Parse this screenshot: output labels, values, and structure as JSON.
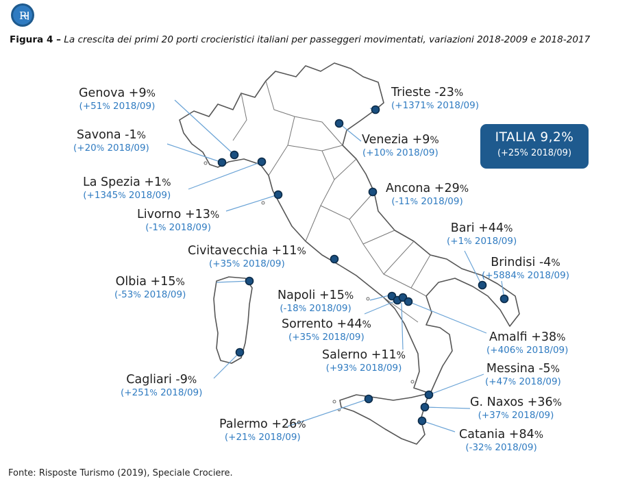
{
  "figure": {
    "label": "Figura 4 –",
    "caption": "La crescita dei primi 20 porti crocieristici italiani per passeggeri movimentati, variazioni 2018-2009 e 2018-2017"
  },
  "logo": {
    "icon": "logo-icon",
    "text": "R"
  },
  "total": {
    "title": "ITALIA 9,2%",
    "sub": "(+25% 2018/09)"
  },
  "colors": {
    "accent": "#2f7bc1",
    "box": "#1e5a8e",
    "marker": "#1a4f80",
    "line": "#6aa3d6"
  },
  "ports": [
    {
      "id": "trieste",
      "name": "Trieste",
      "var": "-23",
      "sub": "(+1371",
      "year": "2018/09)"
    },
    {
      "id": "genova",
      "name": "Genova",
      "var": "+9",
      "sub": "(+51",
      "year": "2018/09)"
    },
    {
      "id": "venezia",
      "name": "Venezia",
      "var": "+9",
      "sub": "(+10",
      "year": "2018/09)"
    },
    {
      "id": "savona",
      "name": "Savona",
      "var": "-1",
      "sub": "(+20",
      "year": "2018/09)"
    },
    {
      "id": "laspezia",
      "name": "La Spezia",
      "var": "+1",
      "sub": "(+1345",
      "year": "2018/09)"
    },
    {
      "id": "ancona",
      "name": "Ancona",
      "var": "+29",
      "sub": "(-11",
      "year": "2018/09)"
    },
    {
      "id": "livorno",
      "name": "Livorno",
      "var": "+13",
      "sub": "(-1",
      "year": "2018/09)"
    },
    {
      "id": "bari",
      "name": "Bari",
      "var": "+44",
      "sub": "(+1",
      "year": "2018/09)"
    },
    {
      "id": "civitavecchia",
      "name": "Civitavecchia",
      "var": "+11",
      "sub": "(+35",
      "year": "2018/09)"
    },
    {
      "id": "brindisi",
      "name": "Brindisi",
      "var": "-4",
      "sub": "(+5884",
      "year": "2018/09)"
    },
    {
      "id": "olbia",
      "name": "Olbia",
      "var": "+15",
      "sub": "(-53",
      "year": "2018/09)"
    },
    {
      "id": "napoli",
      "name": "Napoli",
      "var": "+15",
      "sub": "(-18",
      "year": "2018/09)"
    },
    {
      "id": "sorrento",
      "name": "Sorrento",
      "var": "+44",
      "sub": "(+35",
      "year": "2018/09)"
    },
    {
      "id": "amalfi",
      "name": "Amalfi",
      "var": "+38",
      "sub": "(+406",
      "year": "2018/09)"
    },
    {
      "id": "salerno",
      "name": "Salerno",
      "var": "+11",
      "sub": "(+93",
      "year": "2018/09)"
    },
    {
      "id": "messina",
      "name": "Messina",
      "var": "-5",
      "sub": "(+47",
      "year": "2018/09)"
    },
    {
      "id": "cagliari",
      "name": "Cagliari",
      "var": "-9",
      "sub": "(+251",
      "year": "2018/09)"
    },
    {
      "id": "gnaxos",
      "name": "G. Naxos",
      "var": "+36",
      "sub": "(+37",
      "year": "2018/09)"
    },
    {
      "id": "palermo",
      "name": "Palermo",
      "var": "+26",
      "sub": "(+21",
      "year": "2018/09)"
    },
    {
      "id": "catania",
      "name": "Catania",
      "var": "+84",
      "sub": "(-32",
      "year": "2018/09)"
    }
  ],
  "pct_sign": "%",
  "source": "Fonte: Risposte Turismo (2019), Speciale Crociere."
}
